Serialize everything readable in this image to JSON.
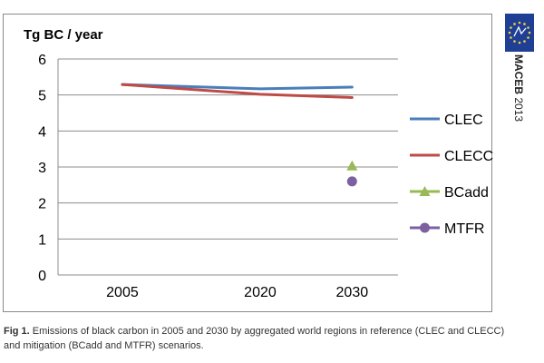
{
  "chart_data": {
    "type": "line",
    "title": "Tg BC / year",
    "x": [
      2005,
      2020,
      2030
    ],
    "xticks": [
      "2005",
      "2020",
      "2030"
    ],
    "ylim": [
      0,
      6
    ],
    "yticks": [
      0,
      1,
      2,
      3,
      4,
      5,
      6
    ],
    "grid": true,
    "legend_position": "right",
    "series": [
      {
        "name": "CLEC",
        "kind": "line",
        "x": [
          2005,
          2020,
          2030
        ],
        "values": [
          5.29,
          5.17,
          5.22
        ],
        "color": "#4a7ebb"
      },
      {
        "name": "CLECC",
        "kind": "line",
        "x": [
          2005,
          2020,
          2030
        ],
        "values": [
          5.29,
          5.02,
          4.93
        ],
        "color": "#be4b48"
      },
      {
        "name": "BCadd",
        "kind": "marker",
        "marker": "triangle",
        "x": [
          2030
        ],
        "values": [
          3.03
        ],
        "color": "#98b954"
      },
      {
        "name": "MTFR",
        "kind": "marker",
        "marker": "circle",
        "x": [
          2030
        ],
        "values": [
          2.6
        ],
        "color": "#7d60a0"
      }
    ]
  },
  "caption": {
    "label": "Fig 1.",
    "text": " Emissions of black carbon in 2005 and 2030 by aggregated world regions in reference (CLEC and CLECC) and mitigation (BCadd and MTFR) scenarios."
  },
  "branding": {
    "name": "MACEB",
    "year": "2013",
    "flag_color": "#1f3f95",
    "star_color": "#f4d03f"
  }
}
